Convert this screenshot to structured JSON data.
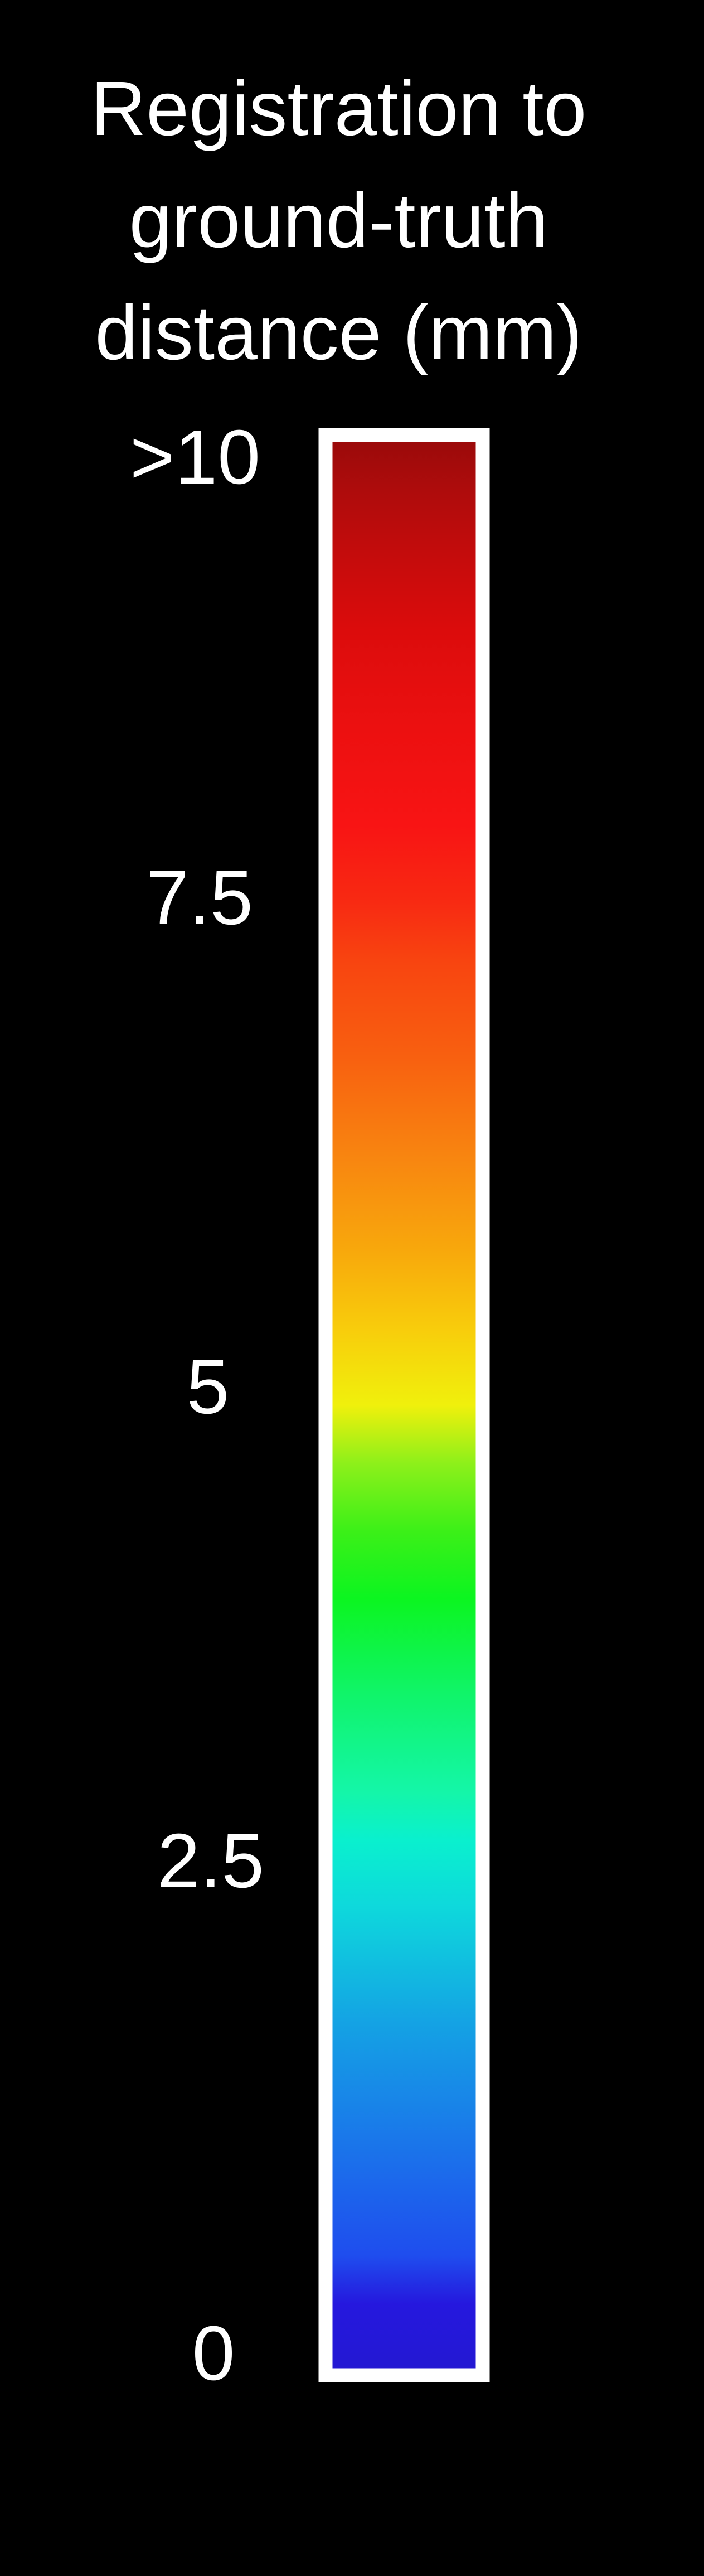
{
  "chart_data": {
    "type": "colorbar",
    "title_lines": [
      "Registration to",
      "ground-truth",
      "distance (mm)"
    ],
    "title": "Registration to ground-truth distance (mm)",
    "orientation": "vertical",
    "range": [
      0,
      10
    ],
    "ticks": [
      {
        "value": 10,
        "label": ">10"
      },
      {
        "value": 7.5,
        "label": "7.5"
      },
      {
        "value": 5,
        "label": "5"
      },
      {
        "value": 2.5,
        "label": "2.5"
      },
      {
        "value": 0,
        "label": "0"
      }
    ],
    "colormap": [
      {
        "value": 0,
        "color": "#2418d2"
      },
      {
        "value": 0.35,
        "color": "#2518de"
      },
      {
        "value": 0.6,
        "color": "#1f4dee"
      },
      {
        "value": 1.2,
        "color": "#1a77ea"
      },
      {
        "value": 1.8,
        "color": "#14a2e4"
      },
      {
        "value": 2.4,
        "color": "#0ed8dc"
      },
      {
        "value": 2.75,
        "color": "#0af0ce"
      },
      {
        "value": 3.0,
        "color": "#14f6a8"
      },
      {
        "value": 3.5,
        "color": "#10f46a"
      },
      {
        "value": 4.0,
        "color": "#0cf520"
      },
      {
        "value": 4.35,
        "color": "#3cf018"
      },
      {
        "value": 4.7,
        "color": "#8ef01a"
      },
      {
        "value": 5.0,
        "color": "#f0f00c"
      },
      {
        "value": 5.4,
        "color": "#f8cc0c"
      },
      {
        "value": 5.8,
        "color": "#f8a80c"
      },
      {
        "value": 6.3,
        "color": "#f88410"
      },
      {
        "value": 6.8,
        "color": "#f86010"
      },
      {
        "value": 7.3,
        "color": "#f84410"
      },
      {
        "value": 7.6,
        "color": "#f82a12"
      },
      {
        "value": 8.0,
        "color": "#f81414"
      },
      {
        "value": 8.5,
        "color": "#ec1010"
      },
      {
        "value": 9.0,
        "color": "#dc0c0c"
      },
      {
        "value": 9.4,
        "color": "#c40c0c"
      },
      {
        "value": 9.7,
        "color": "#b00c0c"
      },
      {
        "value": 10,
        "color": "#9a0a0a"
      }
    ],
    "frame_color": "#ffffff",
    "background_color": "#000000",
    "text_color": "#ffffff"
  }
}
